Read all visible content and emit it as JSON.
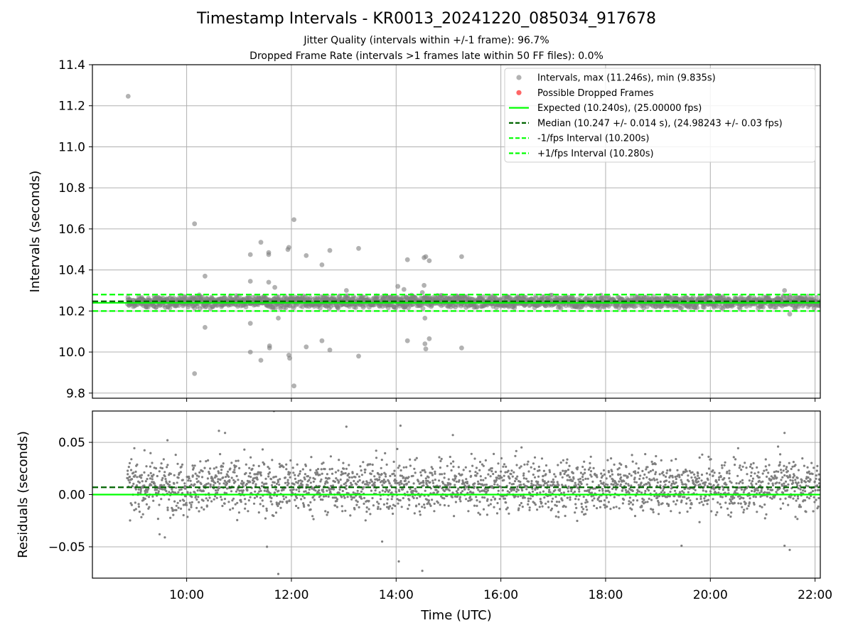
{
  "chart_data": {
    "type": "scatter",
    "title": "Timestamp Intervals - KR0013_20241220_085034_917678",
    "subtitle_1": "Jitter Quality (intervals within +/-1 frame): 96.7%",
    "subtitle_2": "Dropped Frame Rate (intervals >1 frames late within 50 FF files): 0.0%",
    "xlabel": "Time (UTC)",
    "x_ticks": [
      "10:00",
      "12:00",
      "14:00",
      "16:00",
      "18:00",
      "20:00",
      "22:00"
    ],
    "x_range": [
      "08:12",
      "22:06"
    ],
    "grid": true,
    "colors": {
      "intervals": "#7f7f7f",
      "dropped": "#ff0000",
      "expected": "#00ff00",
      "median": "#006400",
      "bounds": "#00ff00"
    },
    "top_panel": {
      "ylabel": "Intervals (seconds)",
      "ylim": [
        9.775,
        11.4
      ],
      "y_ticks": [
        "9.8",
        "10.0",
        "10.2",
        "10.4",
        "10.6",
        "10.8",
        "11.0",
        "11.2",
        "11.4"
      ],
      "legend_position": "top-right",
      "legend": [
        {
          "label": "Intervals, max (11.246s), min (9.835s)",
          "style": "marker",
          "color": "#7f7f7f"
        },
        {
          "label": "Possible Dropped Frames",
          "style": "marker",
          "color": "#ff0000"
        },
        {
          "label": "Expected (10.240s), (25.00000 fps)",
          "style": "solid",
          "color": "#00ff00"
        },
        {
          "label": "Median (10.247 +/- 0.014 s), (24.98243 +/- 0.03 fps)",
          "style": "dashed",
          "color": "#006400"
        },
        {
          "label": "-1/fps Interval (10.200s)",
          "style": "dashed",
          "color": "#00ff00"
        },
        {
          "label": "+1/fps Interval (10.280s)",
          "style": "dashed",
          "color": "#00ff00"
        }
      ],
      "expected": 10.24,
      "median": 10.247,
      "lower_bound": 10.2,
      "upper_bound": 10.28,
      "dense_band": {
        "time_start": "08:52",
        "time_end": "22:06",
        "center": 10.245,
        "spread": 0.035
      },
      "outliers": [
        {
          "x": "08:53",
          "y": 11.246
        },
        {
          "x": "10:09",
          "y": 10.625
        },
        {
          "x": "10:09",
          "y": 9.895
        },
        {
          "x": "10:21",
          "y": 10.37
        },
        {
          "x": "10:21",
          "y": 10.12
        },
        {
          "x": "11:13",
          "y": 10.475
        },
        {
          "x": "11:13",
          "y": 10.345
        },
        {
          "x": "11:13",
          "y": 10.14
        },
        {
          "x": "11:13",
          "y": 10.0
        },
        {
          "x": "11:25",
          "y": 10.535
        },
        {
          "x": "11:25",
          "y": 9.96
        },
        {
          "x": "11:34",
          "y": 10.485
        },
        {
          "x": "11:34",
          "y": 10.475
        },
        {
          "x": "11:34",
          "y": 10.34
        },
        {
          "x": "11:35",
          "y": 10.03
        },
        {
          "x": "11:35",
          "y": 10.02
        },
        {
          "x": "11:41",
          "y": 10.315
        },
        {
          "x": "11:45",
          "y": 10.165
        },
        {
          "x": "11:57",
          "y": 10.51
        },
        {
          "x": "11:56",
          "y": 10.5
        },
        {
          "x": "11:57",
          "y": 9.985
        },
        {
          "x": "11:58",
          "y": 9.97
        },
        {
          "x": "12:03",
          "y": 10.645
        },
        {
          "x": "12:03",
          "y": 9.835
        },
        {
          "x": "12:17",
          "y": 10.47
        },
        {
          "x": "12:17",
          "y": 10.025
        },
        {
          "x": "12:35",
          "y": 10.425
        },
        {
          "x": "12:35",
          "y": 10.055
        },
        {
          "x": "12:44",
          "y": 10.495
        },
        {
          "x": "12:44",
          "y": 10.01
        },
        {
          "x": "13:03",
          "y": 10.3
        },
        {
          "x": "13:17",
          "y": 10.505
        },
        {
          "x": "13:17",
          "y": 9.98
        },
        {
          "x": "14:02",
          "y": 10.32
        },
        {
          "x": "14:09",
          "y": 10.305
        },
        {
          "x": "14:13",
          "y": 10.45
        },
        {
          "x": "14:13",
          "y": 10.055
        },
        {
          "x": "14:30",
          "y": 10.29
        },
        {
          "x": "14:32",
          "y": 10.46
        },
        {
          "x": "14:34",
          "y": 10.465
        },
        {
          "x": "14:32",
          "y": 10.325
        },
        {
          "x": "14:33",
          "y": 10.165
        },
        {
          "x": "14:33",
          "y": 10.04
        },
        {
          "x": "14:34",
          "y": 10.015
        },
        {
          "x": "14:38",
          "y": 10.445
        },
        {
          "x": "14:38",
          "y": 10.065
        },
        {
          "x": "15:15",
          "y": 10.465
        },
        {
          "x": "15:15",
          "y": 10.02
        },
        {
          "x": "21:25",
          "y": 10.3
        },
        {
          "x": "21:31",
          "y": 10.185
        }
      ]
    },
    "bottom_panel": {
      "ylabel": "Residuals (seconds)",
      "ylim": [
        -0.08,
        0.08
      ],
      "y_ticks": [
        "−0.05",
        "0.00",
        "0.05"
      ],
      "expected_residual": 0.0,
      "median_residual": 0.007,
      "dense_band": {
        "time_start": "08:52",
        "time_end": "22:06",
        "center": 0.008,
        "spread": 0.02
      },
      "outliers": [
        {
          "x": "11:40",
          "y": 0.08
        },
        {
          "x": "11:45",
          "y": -0.076
        },
        {
          "x": "14:05",
          "y": 0.066
        },
        {
          "x": "14:30",
          "y": -0.073
        },
        {
          "x": "14:03",
          "y": -0.064
        },
        {
          "x": "13:03",
          "y": 0.065
        },
        {
          "x": "10:37",
          "y": 0.061
        },
        {
          "x": "10:44",
          "y": 0.059
        },
        {
          "x": "11:32",
          "y": -0.05
        },
        {
          "x": "19:27",
          "y": -0.049
        },
        {
          "x": "21:25",
          "y": 0.059
        },
        {
          "x": "21:25",
          "y": -0.049
        },
        {
          "x": "21:31",
          "y": -0.053
        },
        {
          "x": "09:29",
          "y": -0.038
        },
        {
          "x": "09:35",
          "y": -0.041
        },
        {
          "x": "09:38",
          "y": 0.052
        },
        {
          "x": "13:44",
          "y": -0.045
        },
        {
          "x": "15:05",
          "y": 0.057
        }
      ]
    }
  }
}
